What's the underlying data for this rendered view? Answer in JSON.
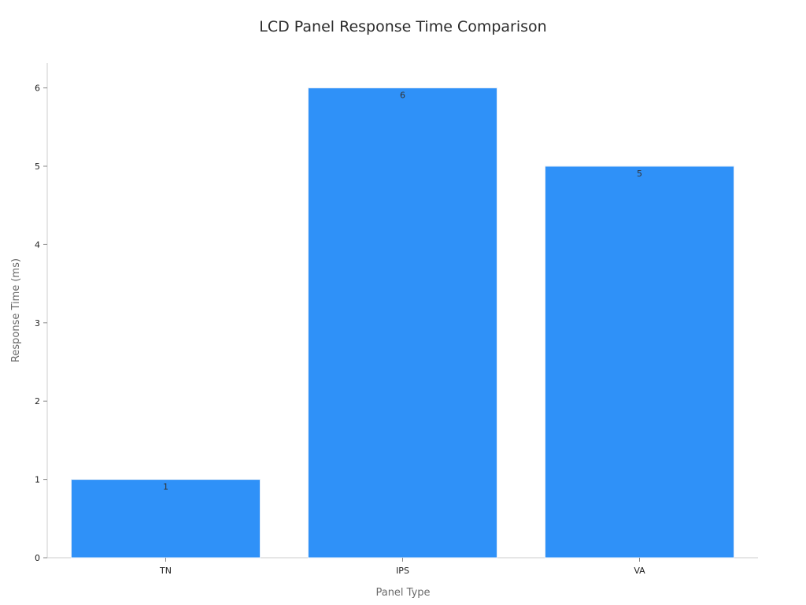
{
  "chart_data": {
    "type": "bar",
    "title": "LCD Panel Response Time Comparison",
    "xlabel": "Panel Type",
    "ylabel": "Response Time (ms)",
    "categories": [
      "TN",
      "IPS",
      "VA"
    ],
    "values": [
      1,
      6,
      5
    ],
    "data_labels": [
      "1",
      "6",
      "5"
    ],
    "ylim": [
      0,
      6.3
    ],
    "yticks": [
      0,
      1,
      2,
      3,
      4,
      5,
      6
    ],
    "grid": false,
    "colors": {
      "bar": "#2f91f8",
      "bar_edge": "#e6eef8",
      "axis": "#cccccc",
      "title": "#2b2b2b",
      "axis_label": "#6b6b6b",
      "tick_label": "#222222",
      "data_label": "#333333"
    }
  }
}
